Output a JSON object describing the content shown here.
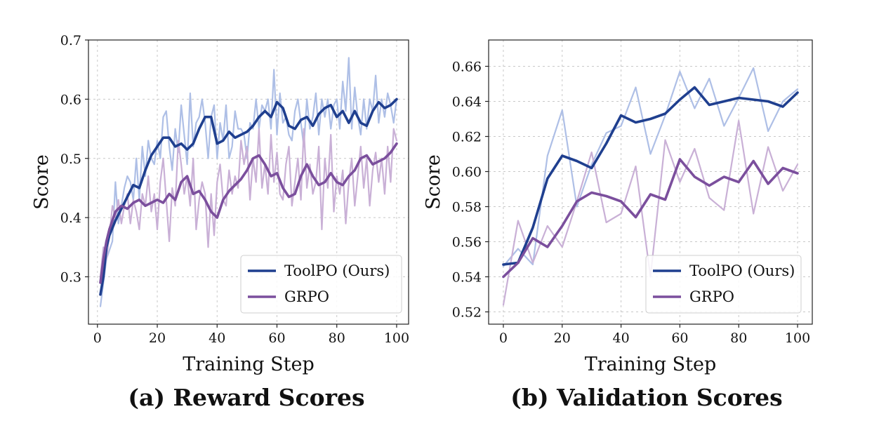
{
  "colors": {
    "toolpo": "#1f3f8f",
    "toolpo_light": "#aebfe6",
    "grpo": "#7b4f9d",
    "grpo_light": "#c9b0d6"
  },
  "chart_data": [
    {
      "type": "line",
      "title": "(a) Reward Scores",
      "xlabel": "Training Step",
      "ylabel": "Score",
      "xlim": [
        -3,
        104
      ],
      "ylim": [
        0.22,
        0.7
      ],
      "xticks": [
        0,
        20,
        40,
        60,
        80,
        100
      ],
      "yticks": [
        0.3,
        0.4,
        0.5,
        0.6,
        0.7
      ],
      "grid": true,
      "legend": "lower-right",
      "series": [
        {
          "name": "ToolPO (Ours)",
          "style": "smoothed",
          "x": [
            1,
            2,
            3,
            4,
            6,
            8,
            10,
            12,
            14,
            16,
            18,
            20,
            22,
            24,
            26,
            28,
            30,
            32,
            34,
            36,
            38,
            40,
            42,
            44,
            46,
            48,
            50,
            52,
            54,
            56,
            58,
            60,
            62,
            64,
            66,
            68,
            70,
            72,
            74,
            76,
            78,
            80,
            82,
            84,
            86,
            88,
            90,
            92,
            94,
            96,
            98,
            100
          ],
          "y": [
            0.27,
            0.3,
            0.35,
            0.37,
            0.395,
            0.415,
            0.435,
            0.455,
            0.45,
            0.48,
            0.505,
            0.52,
            0.535,
            0.535,
            0.52,
            0.525,
            0.515,
            0.525,
            0.55,
            0.57,
            0.57,
            0.525,
            0.53,
            0.545,
            0.535,
            0.54,
            0.545,
            0.555,
            0.57,
            0.58,
            0.57,
            0.595,
            0.585,
            0.555,
            0.55,
            0.565,
            0.57,
            0.555,
            0.575,
            0.585,
            0.59,
            0.57,
            0.58,
            0.56,
            0.58,
            0.56,
            0.555,
            0.58,
            0.595,
            0.585,
            0.59,
            0.6
          ]
        },
        {
          "name": "GRPO",
          "style": "smoothed",
          "x": [
            1,
            2,
            3,
            4,
            6,
            8,
            10,
            12,
            14,
            16,
            18,
            20,
            22,
            24,
            26,
            28,
            30,
            32,
            34,
            36,
            38,
            40,
            42,
            44,
            46,
            48,
            50,
            52,
            54,
            56,
            58,
            60,
            62,
            64,
            66,
            68,
            70,
            72,
            74,
            76,
            78,
            80,
            82,
            84,
            86,
            88,
            90,
            92,
            94,
            96,
            98,
            100
          ],
          "y": [
            0.29,
            0.33,
            0.36,
            0.38,
            0.41,
            0.42,
            0.415,
            0.425,
            0.43,
            0.42,
            0.425,
            0.43,
            0.425,
            0.44,
            0.43,
            0.46,
            0.47,
            0.44,
            0.445,
            0.43,
            0.41,
            0.4,
            0.43,
            0.445,
            0.455,
            0.465,
            0.48,
            0.5,
            0.505,
            0.49,
            0.47,
            0.475,
            0.45,
            0.435,
            0.44,
            0.47,
            0.49,
            0.47,
            0.455,
            0.46,
            0.475,
            0.46,
            0.455,
            0.47,
            0.48,
            0.5,
            0.505,
            0.49,
            0.495,
            0.5,
            0.51,
            0.525
          ]
        },
        {
          "name": "",
          "style": "raw",
          "x": [
            1,
            3,
            5,
            6,
            7,
            8,
            9,
            10,
            11,
            12,
            13,
            14,
            15,
            16,
            17,
            18,
            19,
            20,
            21,
            22,
            23,
            24,
            25,
            26,
            27,
            28,
            29,
            30,
            31,
            32,
            33,
            34,
            35,
            36,
            37,
            38,
            39,
            40,
            41,
            42,
            43,
            44,
            45,
            46,
            47,
            48,
            49,
            50,
            51,
            52,
            53,
            54,
            55,
            56,
            57,
            58,
            59,
            60,
            61,
            62,
            63,
            64,
            65,
            66,
            67,
            68,
            69,
            70,
            71,
            72,
            73,
            74,
            75,
            76,
            77,
            78,
            79,
            80,
            81,
            82,
            83,
            84,
            85,
            86,
            87,
            88,
            89,
            90,
            91,
            92,
            93,
            94,
            95,
            96,
            97,
            98,
            99,
            100
          ],
          "y": [
            0.25,
            0.33,
            0.36,
            0.46,
            0.39,
            0.42,
            0.45,
            0.47,
            0.46,
            0.43,
            0.5,
            0.43,
            0.52,
            0.47,
            0.53,
            0.5,
            0.49,
            0.53,
            0.5,
            0.57,
            0.58,
            0.52,
            0.48,
            0.55,
            0.51,
            0.59,
            0.54,
            0.49,
            0.61,
            0.52,
            0.56,
            0.57,
            0.6,
            0.56,
            0.5,
            0.57,
            0.59,
            0.5,
            0.56,
            0.53,
            0.59,
            0.5,
            0.52,
            0.58,
            0.55,
            0.55,
            0.54,
            0.5,
            0.56,
            0.55,
            0.6,
            0.55,
            0.59,
            0.58,
            0.6,
            0.55,
            0.65,
            0.54,
            0.61,
            0.56,
            0.57,
            0.54,
            0.53,
            0.58,
            0.6,
            0.56,
            0.52,
            0.6,
            0.55,
            0.57,
            0.61,
            0.54,
            0.6,
            0.57,
            0.6,
            0.55,
            0.59,
            0.6,
            0.55,
            0.63,
            0.58,
            0.67,
            0.55,
            0.62,
            0.57,
            0.54,
            0.6,
            0.55,
            0.6,
            0.58,
            0.64,
            0.56,
            0.6,
            0.57,
            0.61,
            0.59,
            0.56,
            0.6
          ]
        },
        {
          "name": "",
          "style": "raw",
          "x": [
            1,
            2,
            3,
            4,
            5,
            6,
            7,
            8,
            9,
            10,
            11,
            12,
            13,
            14,
            15,
            16,
            17,
            18,
            19,
            20,
            21,
            22,
            23,
            24,
            25,
            26,
            27,
            28,
            29,
            30,
            31,
            32,
            33,
            34,
            35,
            36,
            37,
            38,
            39,
            40,
            41,
            42,
            43,
            44,
            45,
            46,
            47,
            48,
            49,
            50,
            51,
            52,
            53,
            54,
            55,
            56,
            57,
            58,
            59,
            60,
            61,
            62,
            63,
            64,
            65,
            66,
            67,
            68,
            69,
            70,
            71,
            72,
            73,
            74,
            75,
            76,
            77,
            78,
            79,
            80,
            81,
            82,
            83,
            84,
            85,
            86,
            87,
            88,
            89,
            90,
            91,
            92,
            93,
            94,
            95,
            96,
            97,
            98,
            99,
            100
          ],
          "y": [
            0.3,
            0.35,
            0.33,
            0.37,
            0.42,
            0.4,
            0.43,
            0.39,
            0.42,
            0.44,
            0.39,
            0.43,
            0.41,
            0.38,
            0.44,
            0.42,
            0.47,
            0.41,
            0.44,
            0.38,
            0.46,
            0.5,
            0.43,
            0.36,
            0.45,
            0.42,
            0.53,
            0.49,
            0.44,
            0.47,
            0.42,
            0.5,
            0.38,
            0.43,
            0.46,
            0.44,
            0.35,
            0.44,
            0.37,
            0.46,
            0.49,
            0.43,
            0.42,
            0.48,
            0.44,
            0.47,
            0.45,
            0.53,
            0.49,
            0.52,
            0.43,
            0.5,
            0.46,
            0.55,
            0.45,
            0.49,
            0.44,
            0.54,
            0.46,
            0.51,
            0.44,
            0.43,
            0.49,
            0.52,
            0.42,
            0.46,
            0.5,
            0.43,
            0.55,
            0.45,
            0.49,
            0.44,
            0.46,
            0.52,
            0.38,
            0.5,
            0.45,
            0.54,
            0.41,
            0.47,
            0.44,
            0.48,
            0.39,
            0.46,
            0.5,
            0.42,
            0.47,
            0.52,
            0.45,
            0.5,
            0.42,
            0.48,
            0.51,
            0.46,
            0.5,
            0.44,
            0.52,
            0.46,
            0.55,
            0.53
          ]
        }
      ]
    },
    {
      "type": "line",
      "title": "(b) Validation Scores",
      "xlabel": "Training Step",
      "ylabel": "Score",
      "xlim": [
        -5,
        105
      ],
      "ylim": [
        0.513,
        0.675
      ],
      "xticks": [
        0,
        20,
        40,
        60,
        80,
        100
      ],
      "yticks": [
        0.52,
        0.54,
        0.56,
        0.58,
        0.6,
        0.62,
        0.64,
        0.66
      ],
      "grid": true,
      "legend": "lower-right",
      "series": [
        {
          "name": "ToolPO (Ours)",
          "style": "smoothed",
          "x": [
            0,
            5,
            10,
            15,
            20,
            25,
            30,
            35,
            40,
            45,
            50,
            55,
            60,
            65,
            70,
            75,
            80,
            85,
            90,
            95,
            100
          ],
          "y": [
            0.547,
            0.548,
            0.568,
            0.596,
            0.609,
            0.606,
            0.602,
            0.616,
            0.632,
            0.628,
            0.63,
            0.633,
            0.641,
            0.648,
            0.638,
            0.64,
            0.642,
            0.641,
            0.64,
            0.637,
            0.645
          ]
        },
        {
          "name": "GRPO",
          "style": "smoothed",
          "x": [
            0,
            5,
            10,
            15,
            20,
            25,
            30,
            35,
            40,
            45,
            50,
            55,
            60,
            65,
            70,
            75,
            80,
            85,
            90,
            95,
            100
          ],
          "y": [
            0.54,
            0.548,
            0.562,
            0.557,
            0.569,
            0.583,
            0.588,
            0.586,
            0.583,
            0.574,
            0.587,
            0.584,
            0.607,
            0.597,
            0.592,
            0.597,
            0.594,
            0.606,
            0.593,
            0.602,
            0.599
          ]
        },
        {
          "name": "",
          "style": "raw",
          "x": [
            0,
            5,
            10,
            15,
            20,
            25,
            30,
            35,
            40,
            45,
            50,
            55,
            60,
            65,
            70,
            75,
            80,
            85,
            90,
            95,
            100
          ],
          "y": [
            0.546,
            0.556,
            0.547,
            0.609,
            0.635,
            0.58,
            0.604,
            0.622,
            0.626,
            0.648,
            0.61,
            0.632,
            0.657,
            0.636,
            0.653,
            0.626,
            0.642,
            0.659,
            0.623,
            0.64,
            0.647
          ]
        },
        {
          "name": "",
          "style": "raw",
          "x": [
            0,
            5,
            10,
            15,
            20,
            25,
            30,
            35,
            40,
            45,
            50,
            55,
            60,
            65,
            70,
            75,
            80,
            85,
            90,
            95,
            100
          ],
          "y": [
            0.524,
            0.572,
            0.548,
            0.569,
            0.557,
            0.583,
            0.611,
            0.571,
            0.576,
            0.603,
            0.54,
            0.618,
            0.594,
            0.613,
            0.585,
            0.578,
            0.629,
            0.576,
            0.614,
            0.589,
            0.604
          ]
        }
      ]
    }
  ]
}
